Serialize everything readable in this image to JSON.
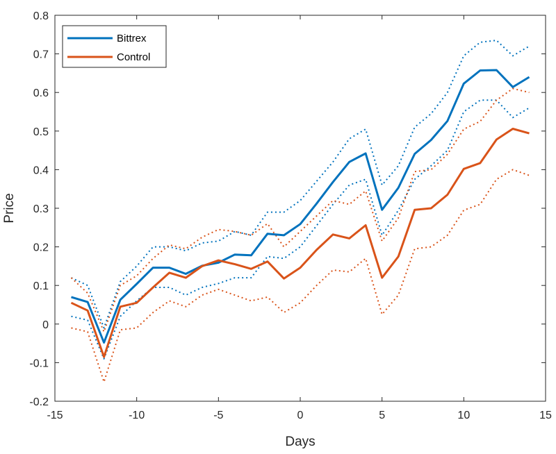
{
  "chart_data": {
    "type": "line",
    "title": "",
    "xlabel": "Days",
    "ylabel": "Price",
    "xlim": [
      -15,
      15
    ],
    "ylim": [
      -0.2,
      0.8
    ],
    "xticks": [
      -15,
      -10,
      -5,
      0,
      5,
      10,
      15
    ],
    "yticks": [
      -0.2,
      -0.1,
      0,
      0.1,
      0.2,
      0.3,
      0.4,
      0.5,
      0.6,
      0.7,
      0.8
    ],
    "xtick_labels": [
      "-15",
      "-10",
      "-5",
      "0",
      "5",
      "10",
      "15"
    ],
    "ytick_labels": [
      "-0.2",
      "-0.1",
      "0",
      "0.1",
      "0.2",
      "0.3",
      "0.4",
      "0.5",
      "0.6",
      "0.7",
      "0.8"
    ],
    "grid": false,
    "legend_position": "top-left",
    "x": [
      -14,
      -13,
      -12,
      -11,
      -10,
      -9,
      -8,
      -7,
      -6,
      -5,
      -4,
      -3,
      -2,
      -1,
      0,
      1,
      2,
      3,
      4,
      5,
      6,
      7,
      8,
      9,
      10,
      11,
      12,
      13,
      14
    ],
    "series": [
      {
        "name": "Bittrex",
        "color": "#0072BD",
        "style": "solid",
        "values": [
          0.07,
          0.057,
          -0.048,
          0.063,
          0.104,
          0.146,
          0.146,
          0.13,
          0.151,
          0.159,
          0.18,
          0.178,
          0.234,
          0.23,
          0.259,
          0.312,
          0.368,
          0.42,
          0.442,
          0.296,
          0.353,
          0.441,
          0.477,
          0.526,
          0.623,
          0.657,
          0.658,
          0.614,
          0.64
        ]
      },
      {
        "name": "Bittrex upper bound",
        "color": "#0072BD",
        "style": "dotted",
        "values": [
          0.12,
          0.1,
          -0.01,
          0.11,
          0.15,
          0.2,
          0.2,
          0.19,
          0.21,
          0.215,
          0.24,
          0.23,
          0.29,
          0.29,
          0.32,
          0.37,
          0.42,
          0.48,
          0.505,
          0.36,
          0.41,
          0.51,
          0.545,
          0.6,
          0.695,
          0.73,
          0.735,
          0.695,
          0.72
        ]
      },
      {
        "name": "Bittrex lower bound",
        "color": "#0072BD",
        "style": "dotted",
        "values": [
          0.02,
          0.01,
          -0.09,
          0.02,
          0.06,
          0.095,
          0.095,
          0.075,
          0.095,
          0.105,
          0.12,
          0.12,
          0.175,
          0.17,
          0.2,
          0.255,
          0.31,
          0.36,
          0.375,
          0.23,
          0.295,
          0.375,
          0.41,
          0.45,
          0.55,
          0.58,
          0.58,
          0.535,
          0.56
        ]
      },
      {
        "name": "Control",
        "color": "#D95319",
        "style": "solid",
        "values": [
          0.055,
          0.035,
          -0.085,
          0.045,
          0.055,
          0.095,
          0.133,
          0.12,
          0.15,
          0.165,
          0.155,
          0.143,
          0.162,
          0.118,
          0.146,
          0.192,
          0.232,
          0.222,
          0.256,
          0.12,
          0.175,
          0.296,
          0.3,
          0.335,
          0.402,
          0.417,
          0.478,
          0.506,
          0.494
        ]
      },
      {
        "name": "Control upper bound",
        "color": "#D95319",
        "style": "dotted",
        "values": [
          0.12,
          0.08,
          -0.02,
          0.1,
          0.125,
          0.17,
          0.205,
          0.195,
          0.225,
          0.245,
          0.24,
          0.23,
          0.26,
          0.2,
          0.24,
          0.28,
          0.32,
          0.31,
          0.345,
          0.215,
          0.275,
          0.395,
          0.4,
          0.44,
          0.505,
          0.525,
          0.58,
          0.61,
          0.6
        ]
      },
      {
        "name": "Control lower bound",
        "color": "#D95319",
        "style": "dotted",
        "values": [
          -0.01,
          -0.02,
          -0.15,
          -0.015,
          -0.01,
          0.03,
          0.06,
          0.045,
          0.075,
          0.09,
          0.075,
          0.06,
          0.07,
          0.03,
          0.055,
          0.1,
          0.14,
          0.135,
          0.17,
          0.025,
          0.075,
          0.195,
          0.2,
          0.23,
          0.295,
          0.31,
          0.375,
          0.4,
          0.385
        ]
      }
    ],
    "legend": [
      {
        "label": "Bittrex",
        "color": "#0072BD"
      },
      {
        "label": "Control",
        "color": "#D95319"
      }
    ]
  }
}
